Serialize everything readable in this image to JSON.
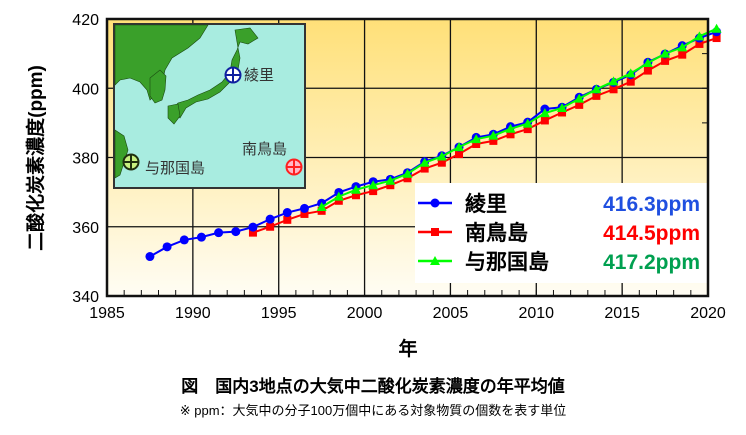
{
  "chart_data": {
    "type": "line",
    "xlabel": "年",
    "ylabel": "二酸化炭素濃度(ppm)",
    "xlim": [
      1985,
      2020
    ],
    "ylim": [
      340,
      420
    ],
    "xticks": [
      1985,
      1990,
      1995,
      2000,
      2005,
      2010,
      2015,
      2020
    ],
    "yticks": [
      340,
      360,
      380,
      400,
      420
    ],
    "grid": true,
    "legend_position": "bottom-right",
    "series": [
      {
        "name": "綾里",
        "color": "#0000ff",
        "marker": "circle",
        "latest_label": "416.3ppm",
        "label_color": "#1f4fe0",
        "x": [
          1987,
          1988,
          1989,
          1990,
          1991,
          1992,
          1993,
          1994,
          1995,
          1996,
          1997,
          1998,
          1999,
          2000,
          2001,
          2002,
          2003,
          2004,
          2005,
          2006,
          2007,
          2008,
          2009,
          2010,
          2011,
          2012,
          2013,
          2014,
          2015,
          2016,
          2017,
          2018,
          2019,
          2020
        ],
        "values": [
          351.4,
          354.2,
          356.2,
          357.0,
          358.3,
          358.6,
          359.9,
          362.2,
          364.1,
          365.3,
          366.8,
          369.9,
          371.6,
          373.0,
          373.7,
          375.6,
          378.8,
          380.5,
          383.0,
          385.8,
          386.7,
          388.9,
          390.2,
          394.0,
          394.5,
          397.4,
          399.7,
          401.7,
          403.9,
          407.5,
          409.9,
          412.3,
          414.5,
          416.3
        ]
      },
      {
        "name": "南鳥島",
        "color": "#ff0000",
        "marker": "square",
        "latest_label": "414.5ppm",
        "label_color": "#ff0000",
        "x": [
          1993,
          1994,
          1995,
          1996,
          1997,
          1998,
          1999,
          2000,
          2001,
          2002,
          2003,
          2004,
          2005,
          2006,
          2007,
          2008,
          2009,
          2010,
          2011,
          2012,
          2013,
          2014,
          2015,
          2016,
          2017,
          2018,
          2019,
          2020
        ],
        "values": [
          358.3,
          360.0,
          362.0,
          363.7,
          364.6,
          367.5,
          369.1,
          370.3,
          372.0,
          374.0,
          376.8,
          378.5,
          381.0,
          383.9,
          384.8,
          386.7,
          388.2,
          390.7,
          393.0,
          395.2,
          397.8,
          399.7,
          401.9,
          405.1,
          407.9,
          409.7,
          412.8,
          414.5
        ]
      },
      {
        "name": "与那国島",
        "color": "#00ff00",
        "marker": "triangle",
        "latest_label": "417.2ppm",
        "label_color": "#00a050",
        "x": [
          1997,
          1998,
          1999,
          2000,
          2001,
          2002,
          2003,
          2004,
          2005,
          2006,
          2007,
          2008,
          2009,
          2010,
          2011,
          2012,
          2013,
          2014,
          2015,
          2016,
          2017,
          2018,
          2019,
          2020
        ],
        "values": [
          365.7,
          368.7,
          370.7,
          372.0,
          373.3,
          375.3,
          378.5,
          380.3,
          383.0,
          385.3,
          386.3,
          388.3,
          389.8,
          392.8,
          394.3,
          397.0,
          399.7,
          402.0,
          404.3,
          407.3,
          410.0,
          411.8,
          415.0,
          417.2
        ]
      }
    ],
    "inset_map": {
      "labels": [
        "綾里",
        "南鳥島",
        "与那国島"
      ],
      "marker_colors": [
        "#0000aa",
        "#ff2020",
        "#c8f080"
      ]
    }
  },
  "caption": "図　国内3地点の大気中二酸化炭素濃度の年平均値",
  "note": "※ ppm：大気中の分子100万個中にある対象物質の個数を表す単位"
}
